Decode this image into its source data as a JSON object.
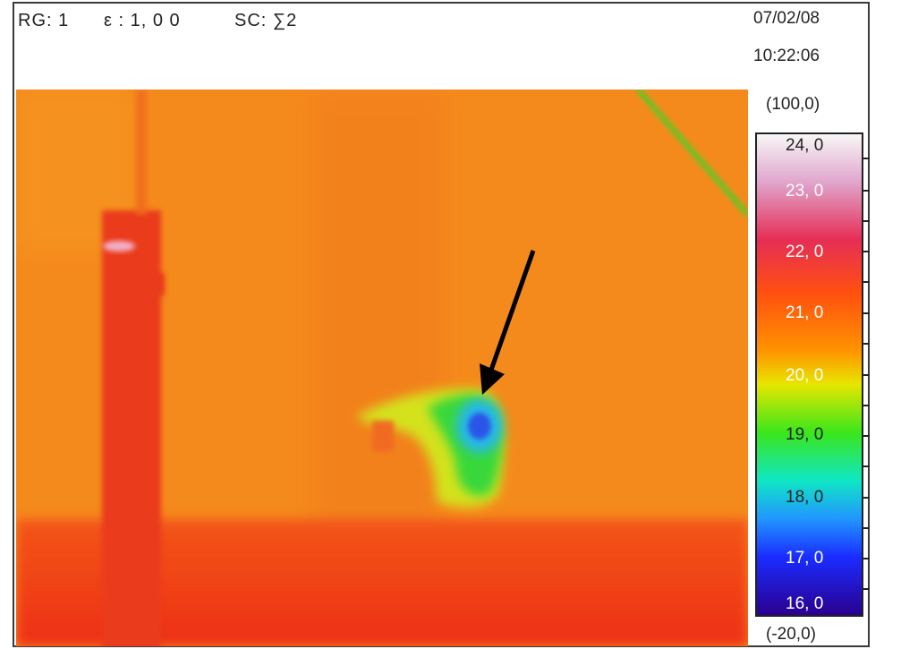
{
  "header": {
    "range": "RG: 1",
    "emissivity": "ε : 1, 0 0",
    "sc": "SC: ∑2",
    "date": "07/02/08",
    "time": "10:22:06"
  },
  "scale": {
    "max_label": "(100,0)",
    "min_label": "(-20,0)",
    "ticks": [
      "24, 0",
      "23, 0",
      "22, 0",
      "21, 0",
      "20, 0",
      "19, 0",
      "18, 0",
      "17, 0",
      "16, 0"
    ]
  },
  "image": {
    "arrow_icon": "arrow-down-left-icon",
    "colors": {
      "background": "#f58a1c",
      "floor": "#f23c14",
      "pillar": "#ea3a1a",
      "cold_spot": "#2c7cf0"
    }
  }
}
